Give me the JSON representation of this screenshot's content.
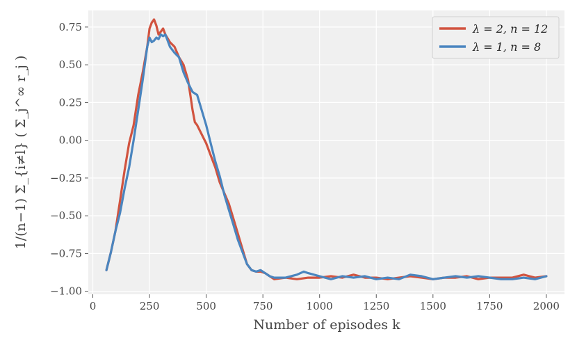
{
  "chart_data": {
    "type": "line",
    "title": "",
    "xlabel": "Number of episodes k",
    "ylabel": "1/(n−1) Σ_{i≠l} ( Σ_j^∞ r_j )",
    "xlim": [
      -20,
      2080
    ],
    "ylim": [
      -1.02,
      0.86
    ],
    "xticks": [
      0,
      250,
      500,
      750,
      1000,
      1250,
      1500,
      1750,
      2000
    ],
    "yticks": [
      -1.0,
      -0.75,
      -0.5,
      -0.25,
      0.0,
      0.25,
      0.5,
      0.75
    ],
    "xtick_labels": [
      "0",
      "250",
      "500",
      "750",
      "1000",
      "1250",
      "1500",
      "1750",
      "2000"
    ],
    "ytick_labels": [
      "−1.00",
      "−0.75",
      "−0.50",
      "−0.25",
      "0.00",
      "0.25",
      "0.50",
      "0.75"
    ],
    "grid": true,
    "legend": "top-right",
    "series": [
      {
        "name": "λ = 2, n = 12",
        "color": "#d1533f",
        "points": [
          [
            60,
            -0.86
          ],
          [
            80,
            -0.74
          ],
          [
            100,
            -0.6
          ],
          [
            120,
            -0.4
          ],
          [
            140,
            -0.2
          ],
          [
            160,
            -0.02
          ],
          [
            180,
            0.1
          ],
          [
            200,
            0.3
          ],
          [
            220,
            0.45
          ],
          [
            240,
            0.62
          ],
          [
            250,
            0.74
          ],
          [
            260,
            0.78
          ],
          [
            270,
            0.8
          ],
          [
            280,
            0.76
          ],
          [
            290,
            0.7
          ],
          [
            300,
            0.72
          ],
          [
            310,
            0.74
          ],
          [
            320,
            0.7
          ],
          [
            340,
            0.65
          ],
          [
            360,
            0.62
          ],
          [
            380,
            0.55
          ],
          [
            400,
            0.5
          ],
          [
            420,
            0.4
          ],
          [
            430,
            0.3
          ],
          [
            440,
            0.2
          ],
          [
            450,
            0.12
          ],
          [
            460,
            0.1
          ],
          [
            480,
            0.04
          ],
          [
            500,
            -0.02
          ],
          [
            520,
            -0.1
          ],
          [
            540,
            -0.18
          ],
          [
            560,
            -0.28
          ],
          [
            580,
            -0.35
          ],
          [
            600,
            -0.42
          ],
          [
            620,
            -0.52
          ],
          [
            640,
            -0.62
          ],
          [
            660,
            -0.72
          ],
          [
            680,
            -0.82
          ],
          [
            700,
            -0.86
          ],
          [
            720,
            -0.87
          ],
          [
            740,
            -0.87
          ],
          [
            760,
            -0.88
          ],
          [
            780,
            -0.9
          ],
          [
            800,
            -0.92
          ],
          [
            850,
            -0.91
          ],
          [
            900,
            -0.92
          ],
          [
            950,
            -0.91
          ],
          [
            1000,
            -0.91
          ],
          [
            1050,
            -0.9
          ],
          [
            1100,
            -0.91
          ],
          [
            1150,
            -0.89
          ],
          [
            1200,
            -0.91
          ],
          [
            1250,
            -0.91
          ],
          [
            1300,
            -0.92
          ],
          [
            1350,
            -0.91
          ],
          [
            1400,
            -0.9
          ],
          [
            1450,
            -0.91
          ],
          [
            1500,
            -0.92
          ],
          [
            1550,
            -0.91
          ],
          [
            1600,
            -0.91
          ],
          [
            1650,
            -0.9
          ],
          [
            1700,
            -0.92
          ],
          [
            1750,
            -0.91
          ],
          [
            1800,
            -0.91
          ],
          [
            1850,
            -0.91
          ],
          [
            1900,
            -0.89
          ],
          [
            1950,
            -0.91
          ],
          [
            2000,
            -0.9
          ]
        ]
      },
      {
        "name": "λ = 1, n = 8",
        "color": "#4a85bf",
        "points": [
          [
            60,
            -0.86
          ],
          [
            80,
            -0.74
          ],
          [
            100,
            -0.6
          ],
          [
            120,
            -0.48
          ],
          [
            140,
            -0.32
          ],
          [
            160,
            -0.18
          ],
          [
            180,
            0.0
          ],
          [
            200,
            0.2
          ],
          [
            220,
            0.4
          ],
          [
            240,
            0.62
          ],
          [
            250,
            0.68
          ],
          [
            260,
            0.65
          ],
          [
            270,
            0.66
          ],
          [
            280,
            0.68
          ],
          [
            290,
            0.67
          ],
          [
            300,
            0.7
          ],
          [
            310,
            0.69
          ],
          [
            320,
            0.7
          ],
          [
            340,
            0.62
          ],
          [
            360,
            0.58
          ],
          [
            380,
            0.55
          ],
          [
            400,
            0.45
          ],
          [
            420,
            0.38
          ],
          [
            440,
            0.32
          ],
          [
            460,
            0.3
          ],
          [
            480,
            0.2
          ],
          [
            500,
            0.1
          ],
          [
            520,
            -0.02
          ],
          [
            540,
            -0.14
          ],
          [
            560,
            -0.24
          ],
          [
            580,
            -0.36
          ],
          [
            600,
            -0.46
          ],
          [
            620,
            -0.56
          ],
          [
            640,
            -0.66
          ],
          [
            660,
            -0.74
          ],
          [
            680,
            -0.82
          ],
          [
            700,
            -0.86
          ],
          [
            720,
            -0.87
          ],
          [
            740,
            -0.86
          ],
          [
            760,
            -0.88
          ],
          [
            780,
            -0.9
          ],
          [
            800,
            -0.91
          ],
          [
            850,
            -0.91
          ],
          [
            900,
            -0.89
          ],
          [
            930,
            -0.87
          ],
          [
            950,
            -0.88
          ],
          [
            1000,
            -0.9
          ],
          [
            1050,
            -0.92
          ],
          [
            1100,
            -0.9
          ],
          [
            1150,
            -0.91
          ],
          [
            1200,
            -0.9
          ],
          [
            1250,
            -0.92
          ],
          [
            1300,
            -0.91
          ],
          [
            1350,
            -0.92
          ],
          [
            1400,
            -0.89
          ],
          [
            1450,
            -0.9
          ],
          [
            1500,
            -0.92
          ],
          [
            1550,
            -0.91
          ],
          [
            1600,
            -0.9
          ],
          [
            1650,
            -0.91
          ],
          [
            1700,
            -0.9
          ],
          [
            1750,
            -0.91
          ],
          [
            1800,
            -0.92
          ],
          [
            1850,
            -0.92
          ],
          [
            1900,
            -0.91
          ],
          [
            1950,
            -0.92
          ],
          [
            2000,
            -0.9
          ]
        ]
      }
    ]
  }
}
